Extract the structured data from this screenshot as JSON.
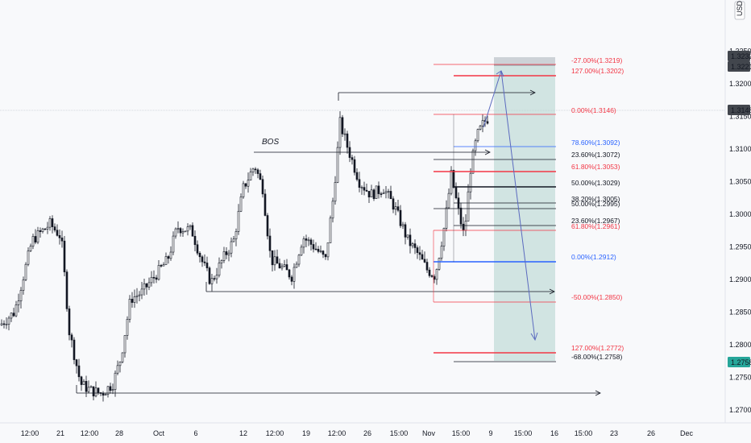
{
  "chart_data": {
    "type": "candlestick",
    "currency_label": "USD",
    "y_axis": {
      "ticks": [
        "1.3250",
        "1.3200",
        "1.3150",
        "1.3100",
        "1.3050",
        "1.3000",
        "1.2950",
        "1.2900",
        "1.2850",
        "1.2800",
        "1.2750",
        "1.2700"
      ],
      "range": [
        1.268,
        1.331
      ]
    },
    "x_axis_labels": [
      "12:00",
      "21",
      "12:00",
      "28",
      "Oct",
      "6",
      "12",
      "12:00",
      "19",
      "12:00",
      "26",
      "15:00",
      "Nov",
      "15:00",
      "9",
      "15:00",
      "16",
      "15:00",
      "23",
      "26",
      "Dec"
    ],
    "price_badges": [
      {
        "value": "1.3232",
        "color": "#42464d"
      },
      {
        "value": "1.3221",
        "color": "#42464d"
      },
      {
        "value": "1.3148",
        "color": "#42464d"
      },
      {
        "value": "1.2758",
        "color": "#26a69a"
      }
    ],
    "annotations": {
      "bos": "BOS"
    },
    "fib_labels": [
      {
        "text": "-27.00%(1.3219)",
        "color": "#f23645"
      },
      {
        "text": "127.00%(1.3202)",
        "color": "#f23645"
      },
      {
        "text": "0.00%(1.3146)",
        "color": "#f23645"
      },
      {
        "text": "78.60%(1.3092)",
        "color": "#2962ff"
      },
      {
        "text": "23.60%(1.3072)",
        "color": "#131722"
      },
      {
        "text": "61.80%(1.3053)",
        "color": "#f23645"
      },
      {
        "text": "50.00%(1.3029)",
        "color": "#131722"
      },
      {
        "text": "38.20%(1.3005)",
        "color": "#131722"
      },
      {
        "text": "50.00%(1.2995)",
        "color": "#131722"
      },
      {
        "text": "23.60%(1.2967)",
        "color": "#131722"
      },
      {
        "text": "61.80%(1.2961)",
        "color": "#f23645"
      },
      {
        "text": "0.00%(1.2912)",
        "color": "#2962ff"
      },
      {
        "text": "-50.00%(1.2850)",
        "color": "#f23645"
      },
      {
        "text": "127.00%(1.2772)",
        "color": "#f23645"
      },
      {
        "text": "-68.00%(1.2758)",
        "color": "#131722"
      }
    ],
    "grid": false
  }
}
